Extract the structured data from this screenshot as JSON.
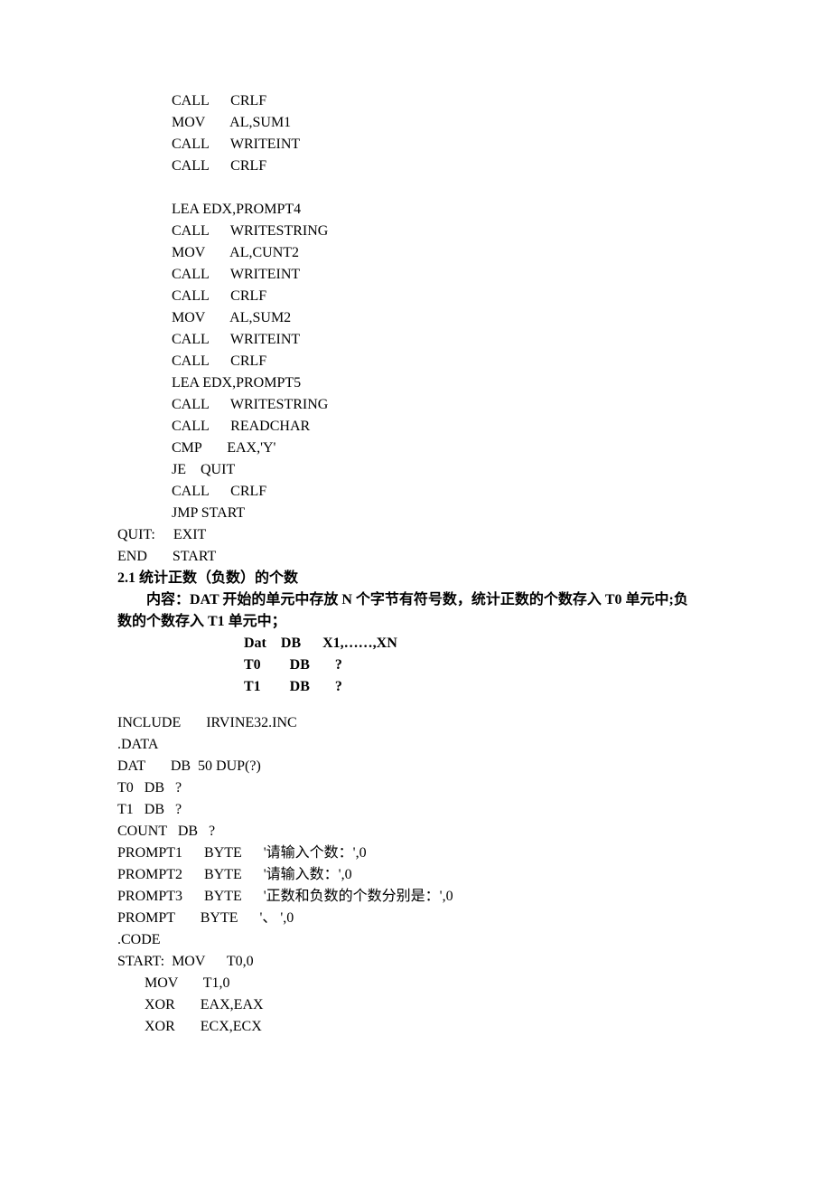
{
  "block1": [
    "CALL      CRLF",
    "MOV       AL,SUM1",
    "CALL      WRITEINT",
    "CALL      CRLF",
    "",
    "LEA EDX,PROMPT4",
    "CALL      WRITESTRING",
    "MOV       AL,CUNT2",
    "CALL      WRITEINT",
    "CALL      CRLF",
    "MOV       AL,SUM2",
    "CALL      WRITEINT",
    "CALL      CRLF",
    "LEA EDX,PROMPT5",
    "CALL      WRITESTRING",
    "CALL      READCHAR",
    "CMP       EAX,'Y'",
    "JE    QUIT",
    "CALL      CRLF",
    "JMP START"
  ],
  "block1_tail": [
    "QUIT:     EXIT",
    "END       START"
  ],
  "section_num": "2.1",
  "section_title": " 统计正数（负数）的个数",
  "desc_prefix": "内容：",
  "desc_body1": "DAT 开始的单元中存放 N 个字节有符号数，统计正数的个数存入 T0 单元中;负",
  "desc_body2": "数的个数存入 T1 单元中；",
  "dat_lines": [
    "Dat    DB      X1,……,XN",
    "T0        DB       ?",
    "T1        DB       ?"
  ],
  "block2_left": [
    "INCLUDE       IRVINE32.INC",
    ".DATA",
    "DAT       DB  50 DUP(?)",
    "T0   DB   ?",
    "T1   DB   ?",
    "COUNT   DB   ?",
    "PROMPT1      BYTE      '请输入个数：',0",
    "PROMPT2      BYTE      '请输入数：',0",
    "PROMPT3      BYTE      '正数和负数的个数分别是：',0",
    "PROMPT       BYTE      '、 ',0",
    ".CODE",
    "START:  MOV      T0,0"
  ],
  "block2_indent": [
    "MOV       T1,0",
    "XOR       EAX,EAX",
    "XOR       ECX,ECX"
  ]
}
